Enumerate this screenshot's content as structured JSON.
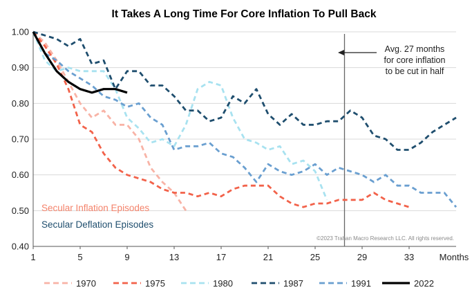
{
  "chart_data": {
    "type": "line",
    "title": "It Takes A Long Time For Core Inflation To Pull Back",
    "xlabel": "Months",
    "ylabel": "",
    "xlim": [
      1,
      37
    ],
    "ylim": [
      0.4,
      1.0
    ],
    "x_ticks": [
      1,
      5,
      9,
      13,
      17,
      21,
      25,
      29,
      33
    ],
    "y_ticks": [
      0.4,
      0.5,
      0.6,
      0.7,
      0.8,
      0.9,
      1.0
    ],
    "y_tick_labels": [
      "0.40",
      "0.50",
      "0.60",
      "0.70",
      "0.80",
      "0.90",
      "1.00"
    ],
    "vertical_marker_x": 27.5,
    "annotation": [
      "Avg. 27 months",
      "for core inflation",
      "to be cut in half"
    ],
    "group_labels": [
      {
        "text": "Secular Inflation Episodes",
        "color": "#f4836b"
      },
      {
        "text": "Secular Deflation Episodes",
        "color": "#1f4e6e"
      }
    ],
    "copyright": "©2023 Trahan Macro Research LLC. All rights reserved.",
    "series": [
      {
        "name": "1970",
        "color": "#f8b3a6",
        "style": "dashed",
        "x": [
          1,
          2,
          3,
          4,
          5,
          6,
          7,
          8,
          9,
          10,
          11,
          12,
          13,
          14
        ],
        "y": [
          1.0,
          0.97,
          0.92,
          0.86,
          0.8,
          0.76,
          0.78,
          0.74,
          0.74,
          0.7,
          0.62,
          0.58,
          0.55,
          0.5
        ]
      },
      {
        "name": "1975",
        "color": "#f2624a",
        "style": "dashed",
        "x": [
          1,
          2,
          3,
          4,
          5,
          6,
          7,
          8,
          9,
          10,
          11,
          12,
          13,
          14,
          15,
          16,
          17,
          18,
          19,
          20,
          21,
          22,
          23,
          24,
          25,
          26,
          27,
          28,
          29,
          30,
          31,
          32,
          33
        ],
        "y": [
          1.0,
          0.96,
          0.91,
          0.84,
          0.74,
          0.72,
          0.66,
          0.62,
          0.6,
          0.59,
          0.58,
          0.56,
          0.55,
          0.55,
          0.54,
          0.55,
          0.54,
          0.56,
          0.57,
          0.57,
          0.57,
          0.54,
          0.52,
          0.51,
          0.52,
          0.52,
          0.53,
          0.53,
          0.53,
          0.55,
          0.53,
          0.52,
          0.51
        ]
      },
      {
        "name": "1980",
        "color": "#a8e2f0",
        "style": "dashed",
        "x": [
          1,
          2,
          3,
          4,
          5,
          6,
          7,
          8,
          9,
          10,
          11,
          12,
          13,
          14,
          15,
          16,
          17,
          18,
          19,
          20,
          21,
          22,
          23,
          24,
          25,
          26
        ],
        "y": [
          1.0,
          0.92,
          0.89,
          0.9,
          0.89,
          0.89,
          0.89,
          0.84,
          0.76,
          0.73,
          0.69,
          0.7,
          0.68,
          0.74,
          0.84,
          0.86,
          0.85,
          0.76,
          0.7,
          0.69,
          0.67,
          0.68,
          0.63,
          0.64,
          0.61,
          0.53
        ]
      },
      {
        "name": "1987",
        "color": "#1f4e6e",
        "style": "dashed",
        "x": [
          1,
          2,
          3,
          4,
          5,
          6,
          7,
          8,
          9,
          10,
          11,
          12,
          13,
          14,
          15,
          16,
          17,
          18,
          19,
          20,
          21,
          22,
          23,
          24,
          25,
          26,
          27,
          28,
          29,
          30,
          31,
          32,
          33,
          34,
          35,
          36,
          37
        ],
        "y": [
          1.0,
          0.99,
          0.98,
          0.96,
          0.98,
          0.91,
          0.92,
          0.84,
          0.89,
          0.89,
          0.85,
          0.85,
          0.82,
          0.78,
          0.78,
          0.75,
          0.76,
          0.82,
          0.8,
          0.84,
          0.77,
          0.74,
          0.77,
          0.74,
          0.74,
          0.75,
          0.75,
          0.78,
          0.76,
          0.71,
          0.7,
          0.67,
          0.67,
          0.69,
          0.72,
          0.74,
          0.76
        ]
      },
      {
        "name": "1991",
        "color": "#6a9fd0",
        "style": "dashed",
        "x": [
          1,
          2,
          3,
          4,
          5,
          6,
          7,
          8,
          9,
          10,
          11,
          12,
          13,
          14,
          15,
          16,
          17,
          18,
          19,
          20,
          21,
          22,
          23,
          24,
          25,
          26,
          27,
          28,
          29,
          30,
          31,
          32,
          33,
          34,
          35,
          36,
          37
        ],
        "y": [
          1.0,
          0.94,
          0.92,
          0.89,
          0.87,
          0.85,
          0.82,
          0.81,
          0.79,
          0.8,
          0.76,
          0.74,
          0.67,
          0.68,
          0.68,
          0.69,
          0.66,
          0.65,
          0.62,
          0.58,
          0.63,
          0.61,
          0.6,
          0.61,
          0.63,
          0.6,
          0.62,
          0.61,
          0.6,
          0.58,
          0.6,
          0.57,
          0.57,
          0.55,
          0.55,
          0.55,
          0.51
        ]
      },
      {
        "name": "2022",
        "color": "#000000",
        "style": "solid",
        "x": [
          1,
          2,
          3,
          4,
          5,
          6,
          7,
          8,
          9
        ],
        "y": [
          1.0,
          0.94,
          0.89,
          0.86,
          0.84,
          0.83,
          0.84,
          0.84,
          0.83
        ]
      }
    ]
  }
}
